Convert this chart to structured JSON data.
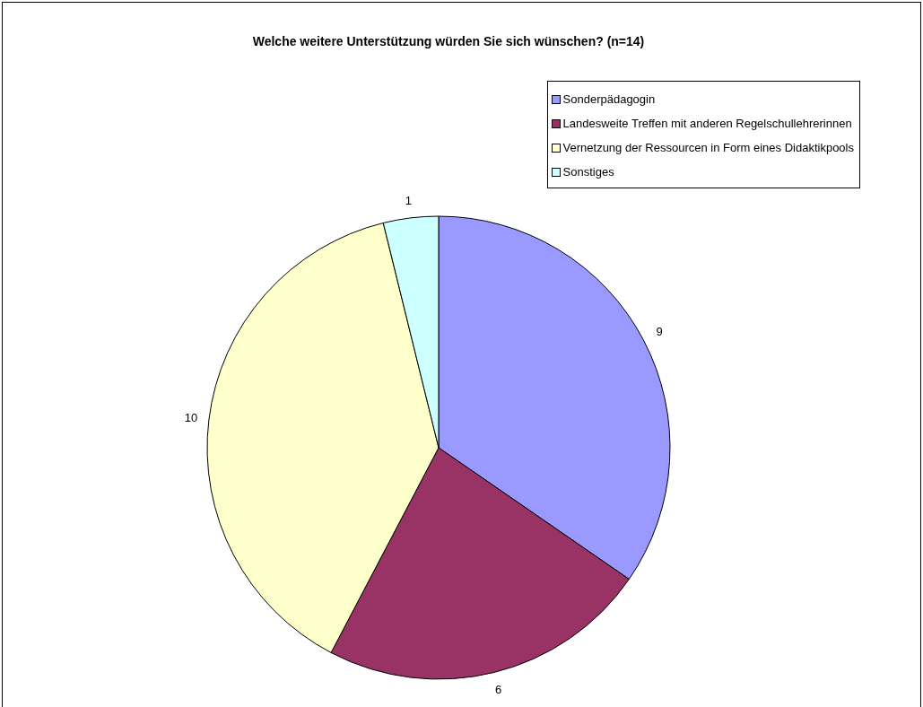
{
  "chart_data": {
    "type": "pie",
    "title": "Welche weitere Unterstützung würden Sie sich wünschen? (n=14)",
    "categories": [
      "Sonderpädagogin",
      "Landesweite Treffen mit anderen Regelschullehrerinnen",
      "Vernetzung der Ressourcen in Form eines Didaktikpools",
      "Sonstiges"
    ],
    "values": [
      9,
      6,
      10,
      1
    ],
    "colors": [
      "#9999ff",
      "#993366",
      "#ffffcc",
      "#ccffff"
    ],
    "data_labels": true,
    "legend": "top right"
  }
}
